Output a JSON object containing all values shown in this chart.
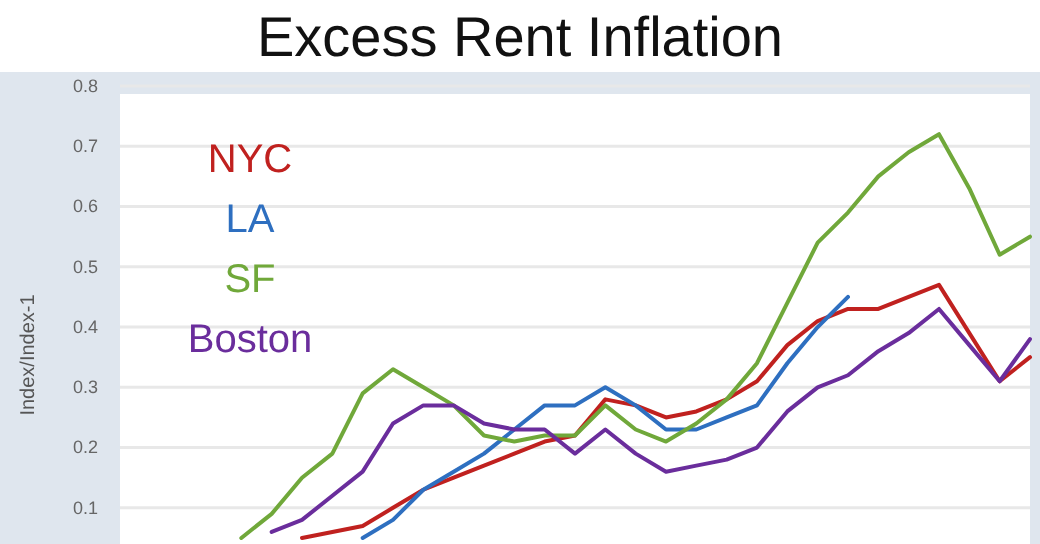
{
  "chart_data": {
    "type": "line",
    "title": "Excess Rent Inflation",
    "ylabel": "Index/Index-1",
    "categories": [
      null,
      null,
      null,
      null,
      null,
      null,
      null,
      null,
      null,
      null,
      null,
      null,
      null,
      null,
      null,
      null,
      null,
      null,
      null,
      null,
      null,
      null,
      null,
      null,
      null,
      null,
      null,
      null,
      null,
      null,
      null
    ],
    "ylim": [
      0.04,
      0.8
    ],
    "yticks": [
      0.1,
      0.2,
      0.3,
      0.4,
      0.5,
      0.6,
      0.7,
      0.8
    ],
    "tick_labels": "y",
    "grid": "y",
    "line_style": "solid",
    "marker": "none",
    "series": [
      {
        "name": "NYC",
        "color": "#c0211f",
        "values": [
          null,
          null,
          null,
          null,
          null,
          null,
          0.05,
          0.06,
          0.07,
          0.1,
          0.13,
          0.15,
          0.17,
          0.19,
          0.21,
          0.22,
          0.28,
          0.27,
          0.25,
          0.26,
          0.28,
          0.31,
          0.37,
          0.41,
          0.43,
          0.43,
          0.45,
          0.47,
          0.39,
          0.31,
          0.35
        ]
      },
      {
        "name": "LA",
        "color": "#2e6fc0",
        "values": [
          null,
          null,
          null,
          null,
          null,
          null,
          null,
          null,
          0.05,
          0.08,
          0.13,
          0.16,
          0.19,
          0.23,
          0.27,
          0.27,
          0.3,
          0.27,
          0.23,
          0.23,
          0.25,
          0.27,
          0.34,
          0.4,
          0.45,
          null,
          null,
          null,
          null,
          null,
          null
        ]
      },
      {
        "name": "SF",
        "color": "#70a83a",
        "values": [
          null,
          null,
          null,
          null,
          0.05,
          0.09,
          0.15,
          0.19,
          0.29,
          0.33,
          0.3,
          0.27,
          0.22,
          0.21,
          0.22,
          0.22,
          0.27,
          0.23,
          0.21,
          0.24,
          0.28,
          0.34,
          0.44,
          0.54,
          0.59,
          0.65,
          0.69,
          0.72,
          0.63,
          0.52,
          0.55
        ]
      },
      {
        "name": "Boston",
        "color": "#6a2d9c",
        "values": [
          null,
          null,
          null,
          null,
          null,
          0.06,
          0.08,
          0.12,
          0.16,
          0.24,
          0.27,
          0.27,
          0.24,
          0.23,
          0.23,
          0.19,
          0.23,
          0.19,
          0.16,
          0.17,
          0.18,
          0.2,
          0.26,
          0.3,
          0.32,
          0.36,
          0.39,
          0.43,
          0.37,
          0.31,
          0.38
        ]
      }
    ]
  }
}
